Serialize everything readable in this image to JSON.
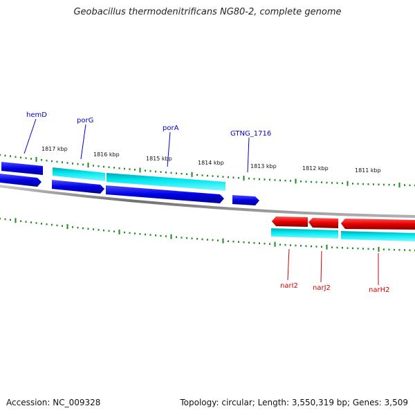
{
  "title": "Geobacillus thermodenitrificans NG80-2, complete genome",
  "footer": {
    "accession": "Accession: NC_009328",
    "topology": "Topology: circular; Length: 3,550,319 bp; Genes: 3,509"
  },
  "colors": {
    "forward_cds": "#0000e6",
    "reverse_cds": "#e60000",
    "feature_band": "#00d8e0",
    "tick_marks": "#1a8a1a",
    "backbone": "#909090",
    "forward_label": "#0000c8",
    "reverse_label": "#c80000"
  },
  "ruler": {
    "labels": [
      "1817 kbp",
      "1816 kbp",
      "1815 kbp",
      "1814 kbp",
      "1813 kbp",
      "1812 kbp",
      "1811 kbp"
    ]
  },
  "gene_labels": {
    "forward": [
      "hemD",
      "porG",
      "porA",
      "GTNG_1716"
    ],
    "reverse": [
      "narI2",
      "narJ2",
      "narH2"
    ]
  }
}
